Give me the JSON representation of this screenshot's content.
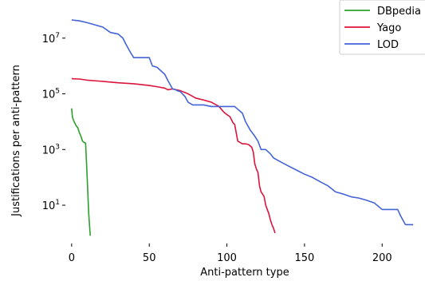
{
  "chart_data": {
    "type": "line",
    "title": "",
    "xlabel": "Anti-pattern type",
    "ylabel": "Justifications per anti-pattern",
    "xlim": [
      -3,
      224
    ],
    "ylim": [
      0.45,
      180000000
    ],
    "yscale": "log",
    "grid": false,
    "legend_position": "top-right",
    "x_ticks": [
      0,
      50,
      100,
      150,
      200
    ],
    "x_tick_labels": [
      "0",
      "50",
      "100",
      "150",
      "200"
    ],
    "y_ticks": [
      10,
      1000,
      100000,
      10000000
    ],
    "y_tick_labels": [
      {
        "base": "10",
        "exp": "1"
      },
      {
        "base": "10",
        "exp": "3"
      },
      {
        "base": "10",
        "exp": "5"
      },
      {
        "base": "10",
        "exp": "7"
      }
    ],
    "series": [
      {
        "name": "DBpedia",
        "color": "#2ca02c",
        "x": [
          0,
          0.5,
          1,
          2,
          3,
          4,
          5,
          6,
          7,
          8,
          9,
          10,
          11,
          12
        ],
        "y": [
          30000,
          15000,
          12000,
          9000,
          7000,
          6000,
          4000,
          3000,
          2000,
          1800,
          1700,
          100,
          5,
          0.8
        ]
      },
      {
        "name": "Yago",
        "color": "#dc143c",
        "x": [
          0,
          5,
          10,
          20,
          30,
          40,
          50,
          55,
          60,
          62,
          65,
          70,
          75,
          80,
          85,
          90,
          95,
          98,
          100,
          102,
          104,
          105,
          107,
          110,
          112,
          114,
          116,
          117,
          118,
          119,
          120,
          121,
          122,
          123,
          124,
          125,
          126,
          127,
          128,
          129,
          130,
          131
        ],
        "y": [
          350000,
          340000,
          310000,
          280000,
          250000,
          230000,
          200000,
          180000,
          160000,
          140000,
          150000,
          130000,
          100000,
          70000,
          60000,
          50000,
          35000,
          22000,
          18000,
          15000,
          9000,
          8000,
          2000,
          1600,
          1600,
          1500,
          1200,
          800,
          300,
          200,
          150,
          50,
          30,
          25,
          20,
          10,
          7,
          5,
          3,
          2,
          1.5,
          1
        ]
      },
      {
        "name": "LOD",
        "color": "#4363d8",
        "x": [
          0,
          5,
          10,
          15,
          20,
          25,
          30,
          33,
          35,
          38,
          40,
          42,
          45,
          50,
          52,
          55,
          60,
          62,
          65,
          67,
          68,
          70,
          73,
          75,
          78,
          80,
          85,
          90,
          95,
          100,
          105,
          110,
          112,
          115,
          118,
          120,
          122,
          125,
          128,
          130,
          135,
          140,
          145,
          150,
          155,
          160,
          165,
          170,
          175,
          180,
          185,
          190,
          195,
          200,
          205,
          210,
          212,
          215,
          220
        ],
        "y": [
          45000000,
          42000000,
          36000000,
          30000000,
          25000000,
          16000000,
          14000000,
          10000000,
          6000000,
          3000000,
          2000000,
          2000000,
          2000000,
          2000000,
          1000000,
          900000,
          500000,
          300000,
          150000,
          140000,
          130000,
          120000,
          80000,
          50000,
          40000,
          40000,
          40000,
          35000,
          35000,
          35000,
          35000,
          20000,
          10000,
          5000,
          3000,
          2000,
          1000,
          1000,
          700,
          500,
          350,
          250,
          180,
          130,
          100,
          70,
          50,
          30,
          25,
          20,
          18,
          15,
          12,
          7,
          7,
          7,
          4,
          2,
          2
        ]
      }
    ]
  }
}
